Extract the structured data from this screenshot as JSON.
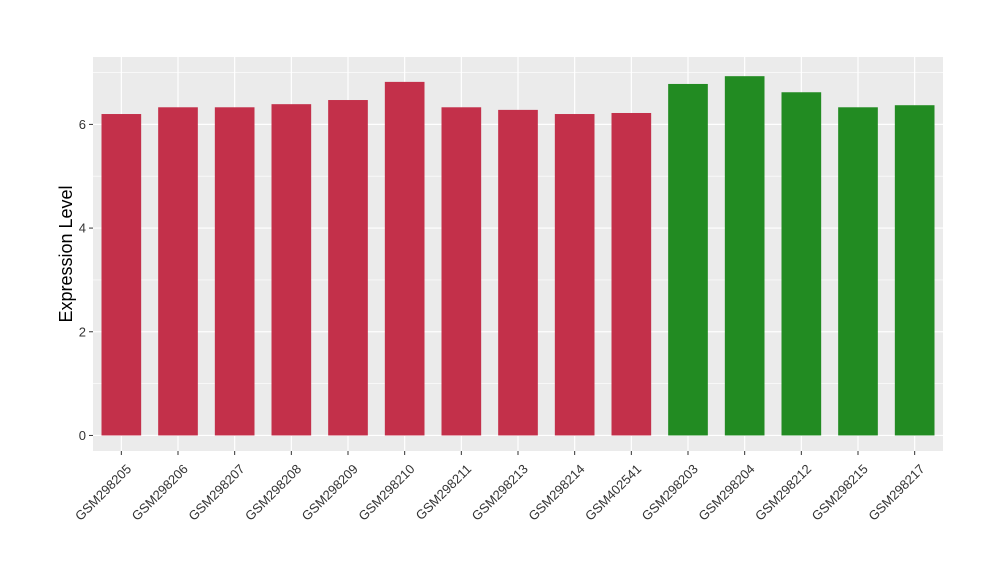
{
  "chart_data": {
    "type": "bar",
    "title": "",
    "xlabel": "",
    "ylabel": "Expression Level",
    "ylim": [
      -0.3,
      7.3
    ],
    "yticks": [
      0,
      2,
      4,
      6
    ],
    "grid": true,
    "panel_background": "#ebebeb",
    "categories": [
      "GSM298205",
      "GSM298206",
      "GSM298207",
      "GSM298208",
      "GSM298209",
      "GSM298210",
      "GSM298211",
      "GSM298213",
      "GSM298214",
      "GSM402541",
      "GSM298203",
      "GSM298204",
      "GSM298212",
      "GSM298215",
      "GSM298217"
    ],
    "values": [
      6.2,
      6.33,
      6.33,
      6.39,
      6.47,
      6.82,
      6.33,
      6.28,
      6.2,
      6.22,
      6.78,
      6.93,
      6.62,
      6.33,
      6.37
    ],
    "colors": [
      "#c3304a",
      "#c3304a",
      "#c3304a",
      "#c3304a",
      "#c3304a",
      "#c3304a",
      "#c3304a",
      "#c3304a",
      "#c3304a",
      "#c3304a",
      "#228b22",
      "#228b22",
      "#228b22",
      "#228b22",
      "#228b22"
    ]
  }
}
